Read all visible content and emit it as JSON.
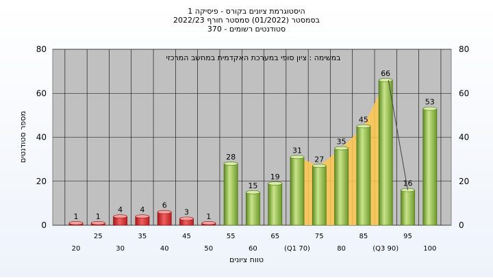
{
  "chart_data": {
    "type": "bar",
    "title": [
      "היסטוגרמת ציונים בקורס - פיסיקה 1",
      "בסמסטר  (01/2022)  סמסטר חורף  2022/23",
      "סטודנטים רשומים - 370"
    ],
    "subtitle": "במשימה : ציון סופי במערכת האקדמית במחשב המרכזי",
    "xlabel": "טווח ציונים",
    "ylabel": "מספר סטודנטים",
    "ylim": [
      0,
      80
    ],
    "yticks": [
      0,
      20,
      40,
      60,
      80
    ],
    "categories": [
      "20",
      "25",
      "30",
      "35",
      "40",
      "45",
      "50",
      "55",
      "60",
      "65",
      "70",
      "75",
      "80",
      "85",
      "90",
      "95",
      "100"
    ],
    "category_labels": [
      "20",
      "25",
      "30",
      "35",
      "40",
      "45",
      "50",
      "55",
      "60",
      "65",
      "(Q1 70)",
      "75",
      "80",
      "85",
      "(Q3 90)",
      "95",
      "100"
    ],
    "values": [
      1,
      1,
      4,
      4,
      6,
      3,
      1,
      28,
      15,
      19,
      31,
      27,
      35,
      45,
      66,
      16,
      53
    ],
    "fail_threshold": 55,
    "colors": {
      "fail": "#e03a3a",
      "pass": "#8fbc45",
      "area": "#ffc850",
      "plot_bg": "#c0c0c0"
    },
    "grid": true
  }
}
